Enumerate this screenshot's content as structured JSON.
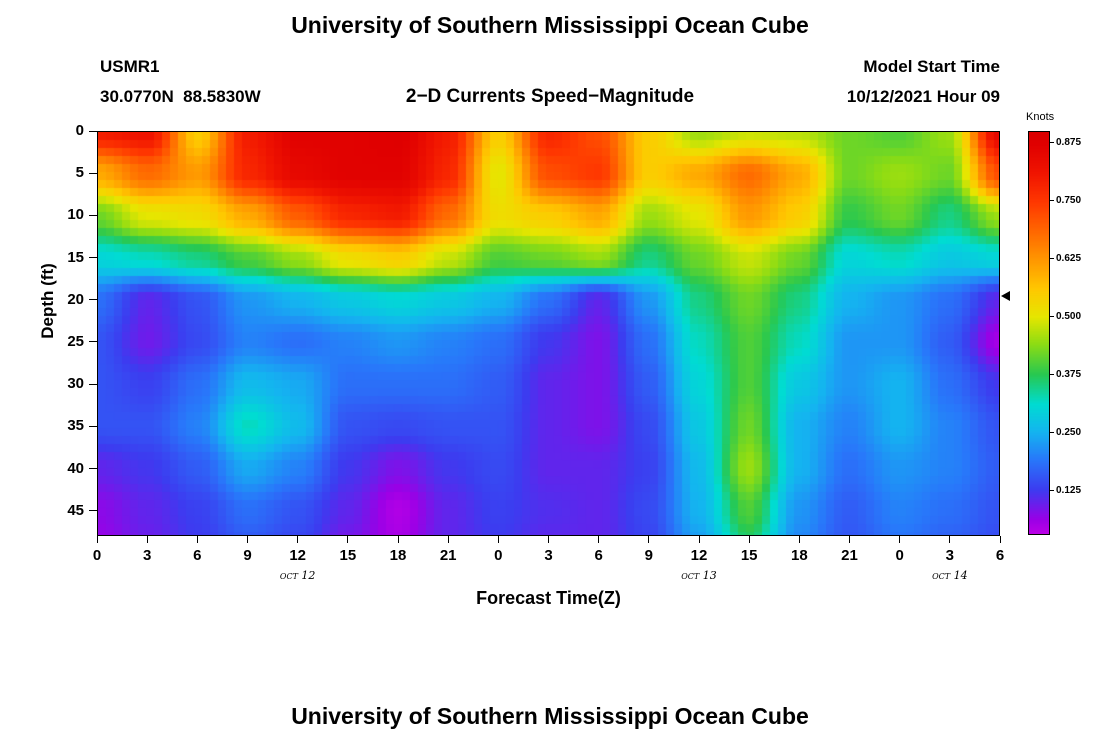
{
  "page": {
    "top_title": "University of Southern Mississippi Ocean Cube",
    "bottom_title": "University of Southern Mississippi Ocean Cube"
  },
  "header": {
    "station_id": "USMR1",
    "coordinates": "30.0770N  88.5830W",
    "plot_title": "2−D Currents Speed−Magnitude",
    "model_start_label": "Model Start Time",
    "model_start_value": "10/12/2021 Hour 09"
  },
  "axes": {
    "y_label": "Depth (ft)",
    "x_label": "Forecast Time(Z)",
    "y_ticks": [
      0,
      5,
      10,
      15,
      20,
      25,
      30,
      35,
      40,
      45
    ],
    "x_tick_hours": [
      0,
      3,
      6,
      9,
      12,
      15,
      18,
      21,
      24,
      27,
      30,
      33,
      36,
      39,
      42,
      45,
      48,
      51,
      54
    ],
    "x_tick_labels": [
      "0",
      "3",
      "6",
      "9",
      "12",
      "15",
      "18",
      "21",
      "0",
      "3",
      "6",
      "9",
      "12",
      "15",
      "18",
      "21",
      "0",
      "3",
      "6"
    ],
    "date_labels": [
      {
        "text": "oct 12",
        "hour": 12
      },
      {
        "text": "oct 13",
        "hour": 36
      },
      {
        "text": "oct 14",
        "hour": 51
      }
    ]
  },
  "colorbar": {
    "title": "Knots",
    "tick_values": [
      0.875,
      0.75,
      0.625,
      0.5,
      0.375,
      0.25,
      0.125
    ],
    "tick_labels": [
      "0.875",
      "0.750",
      "0.625",
      "0.500",
      "0.375",
      "0.250",
      "0.125"
    ],
    "min": 0.03,
    "max": 0.9,
    "stops": [
      {
        "v": 0.0,
        "c": "#dc00e6"
      },
      {
        "v": 0.06,
        "c": "#9a00e6"
      },
      {
        "v": 0.125,
        "c": "#3c3cf0"
      },
      {
        "v": 0.19,
        "c": "#2878fa"
      },
      {
        "v": 0.25,
        "c": "#14b4f0"
      },
      {
        "v": 0.31,
        "c": "#00dcd2"
      },
      {
        "v": 0.375,
        "c": "#28c850"
      },
      {
        "v": 0.44,
        "c": "#8cdc14"
      },
      {
        "v": 0.5,
        "c": "#e6e600"
      },
      {
        "v": 0.56,
        "c": "#ffc800"
      },
      {
        "v": 0.625,
        "c": "#ff9600"
      },
      {
        "v": 0.69,
        "c": "#ff6400"
      },
      {
        "v": 0.75,
        "c": "#ff3700"
      },
      {
        "v": 0.8125,
        "c": "#f01400"
      },
      {
        "v": 0.875,
        "c": "#e00000"
      },
      {
        "v": 0.95,
        "c": "#d20000"
      }
    ]
  },
  "chart_data": {
    "type": "heatmap",
    "title": "2−D Currents Speed−Magnitude",
    "xlabel": "Forecast Time(Z)",
    "ylabel": "Depth (ft)",
    "units": "Knots",
    "xlim": [
      0,
      54
    ],
    "ylim": [
      0,
      48
    ],
    "x_hours": [
      0,
      3,
      6,
      9,
      12,
      15,
      18,
      21,
      24,
      27,
      30,
      33,
      36,
      39,
      42,
      45,
      48,
      51,
      54
    ],
    "y_depths_ft": [
      0,
      5,
      10,
      15,
      20,
      25,
      30,
      35,
      40,
      45,
      50
    ],
    "edge_marker_depth_ft": 19.5,
    "values_knots": [
      [
        0.8,
        0.82,
        0.55,
        0.8,
        0.87,
        0.87,
        0.88,
        0.8,
        0.55,
        0.78,
        0.72,
        0.55,
        0.45,
        0.48,
        0.47,
        0.42,
        0.4,
        0.45,
        0.85
      ],
      [
        0.6,
        0.68,
        0.62,
        0.78,
        0.85,
        0.87,
        0.87,
        0.78,
        0.5,
        0.72,
        0.75,
        0.55,
        0.6,
        0.68,
        0.6,
        0.42,
        0.45,
        0.42,
        0.72
      ],
      [
        0.42,
        0.5,
        0.52,
        0.6,
        0.7,
        0.78,
        0.8,
        0.68,
        0.52,
        0.55,
        0.6,
        0.45,
        0.5,
        0.62,
        0.55,
        0.38,
        0.42,
        0.35,
        0.45
      ],
      [
        0.3,
        0.32,
        0.35,
        0.4,
        0.45,
        0.52,
        0.55,
        0.48,
        0.4,
        0.42,
        0.45,
        0.35,
        0.42,
        0.48,
        0.42,
        0.3,
        0.32,
        0.28,
        0.3
      ],
      [
        0.18,
        0.1,
        0.15,
        0.22,
        0.25,
        0.28,
        0.3,
        0.28,
        0.25,
        0.18,
        0.1,
        0.22,
        0.35,
        0.42,
        0.35,
        0.25,
        0.22,
        0.18,
        0.1
      ],
      [
        0.15,
        0.09,
        0.14,
        0.2,
        0.18,
        0.2,
        0.22,
        0.2,
        0.18,
        0.12,
        0.08,
        0.18,
        0.32,
        0.4,
        0.32,
        0.22,
        0.22,
        0.16,
        0.05
      ],
      [
        0.15,
        0.13,
        0.18,
        0.26,
        0.24,
        0.18,
        0.18,
        0.18,
        0.16,
        0.1,
        0.08,
        0.16,
        0.3,
        0.4,
        0.28,
        0.22,
        0.25,
        0.18,
        0.12
      ],
      [
        0.15,
        0.15,
        0.2,
        0.32,
        0.26,
        0.15,
        0.14,
        0.15,
        0.15,
        0.1,
        0.08,
        0.14,
        0.28,
        0.42,
        0.25,
        0.2,
        0.25,
        0.2,
        0.15
      ],
      [
        0.1,
        0.12,
        0.16,
        0.24,
        0.2,
        0.12,
        0.08,
        0.12,
        0.14,
        0.1,
        0.1,
        0.13,
        0.26,
        0.45,
        0.25,
        0.18,
        0.22,
        0.2,
        0.16
      ],
      [
        0.07,
        0.1,
        0.13,
        0.18,
        0.15,
        0.1,
        0.04,
        0.1,
        0.13,
        0.11,
        0.1,
        0.14,
        0.25,
        0.4,
        0.22,
        0.16,
        0.2,
        0.18,
        0.15
      ],
      [
        0.06,
        0.09,
        0.12,
        0.15,
        0.13,
        0.08,
        0.05,
        0.1,
        0.12,
        0.1,
        0.1,
        0.13,
        0.22,
        0.35,
        0.2,
        0.15,
        0.18,
        0.16,
        0.14
      ]
    ]
  }
}
